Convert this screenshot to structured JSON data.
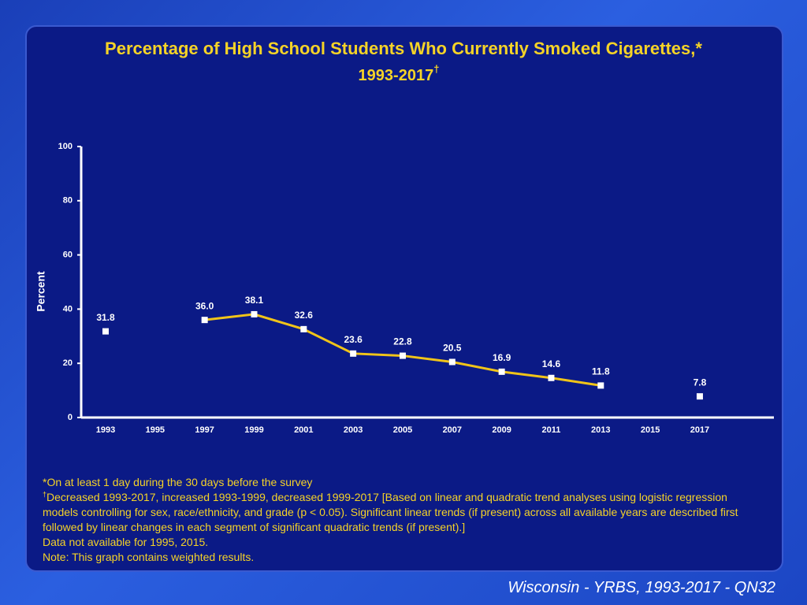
{
  "chart_data": {
    "type": "line",
    "title": [
      "Percentage of High School Students Who Currently Smoked Cigarettes,*",
      "1993-2017"
    ],
    "title_mark": "†",
    "y_label": "Percent",
    "categories": [
      "1993",
      "1995",
      "1997",
      "1999",
      "2001",
      "2003",
      "2005",
      "2007",
      "2009",
      "2011",
      "2013",
      "2015",
      "2017"
    ],
    "values": [
      31.8,
      null,
      36.0,
      38.1,
      32.6,
      23.6,
      22.8,
      20.5,
      16.9,
      14.6,
      11.8,
      null,
      7.8
    ],
    "value_labels": [
      "31.8",
      null,
      "36.0",
      "38.1",
      "32.6",
      "23.6",
      "22.8",
      "20.5",
      "16.9",
      "14.6",
      "11.8",
      null,
      "7.8"
    ],
    "color": "#f0c419",
    "marker_color": "#ffffff",
    "ylim": [
      0,
      100
    ],
    "yticks": [
      0,
      20,
      40,
      60,
      80,
      100
    ],
    "footnotes": [
      "*On at least 1 day during the 30 days before the survey",
      {
        "mark": "†",
        "text": "Decreased 1993-2017, increased 1993-1999, decreased 1999-2017 [Based on linear and quadratic trend analyses using logistic regression models controlling for sex, race/ethnicity, and grade (p < 0.05). Significant linear trends (if present) across all available years are described first followed by linear changes in each segment of significant quadratic trends (if present).]"
      },
      "Data not available for 1995, 2015.",
      "Note: This graph contains weighted results."
    ],
    "source": "Wisconsin - YRBS, 1993-2017 - QN32"
  }
}
